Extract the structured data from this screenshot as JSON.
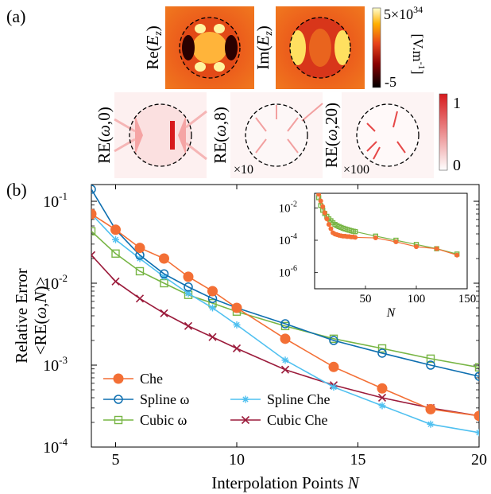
{
  "panel_a": {
    "label": "(a)",
    "field_maps": [
      {
        "label_prefix": "Re(",
        "label_var": "E",
        "label_sub": "z",
        "label_suffix": ")"
      },
      {
        "label_prefix": "Im(",
        "label_var": "E",
        "label_sub": "z",
        "label_suffix": ")"
      }
    ],
    "field_colorbar": {
      "max_label_base": "5×10",
      "max_label_exp": "34",
      "min_label": "-5",
      "unit_base": "[V.m",
      "unit_exp": "-1",
      "unit_close": "]"
    },
    "error_maps": [
      {
        "label_prefix": "RE(",
        "label_var": "ω",
        "label_suffix": ",0)",
        "scale": ""
      },
      {
        "label_prefix": "RE(",
        "label_var": "ω",
        "label_suffix": ",8)",
        "scale": "×10"
      },
      {
        "label_prefix": "RE(",
        "label_var": "ω",
        "label_suffix": ",20)",
        "scale": "×100"
      }
    ],
    "error_colorbar": {
      "max_label": "1",
      "min_label": "0"
    },
    "colors": {
      "field_low": "#000000",
      "field_mid": "#e8421a",
      "field_high": "#ffffd0",
      "error_low": "#ffffff",
      "error_high": "#d7191c"
    }
  },
  "panel_b": {
    "label": "(b)",
    "xlabel_text": "Interpolation Points ",
    "xlabel_var": "N",
    "ylabel_line1": "Relative Error",
    "ylabel_line2_prefix": "<RE(",
    "ylabel_line2_var1": "ω",
    "ylabel_line2_mid": ",",
    "ylabel_line2_var2": "N",
    "ylabel_line2_suffix": ")>",
    "x_ticks": [
      "5",
      "10",
      "15",
      "20"
    ],
    "y_tick_base": "10",
    "y_tick_exps": [
      "-1",
      "-2",
      "-3",
      "-4"
    ],
    "inset": {
      "xlabel": "N",
      "x_ticks": [
        "50",
        "100",
        "150"
      ],
      "y_tick_base": "10",
      "y_tick_exps": [
        "-2",
        "-4",
        "-6"
      ]
    }
  },
  "chart_data": {
    "type": "line",
    "xlabel": "Interpolation Points N",
    "ylabel": "Relative Error <RE(ω,N)>",
    "xlim": [
      4,
      20
    ],
    "ylim": [
      0.0001,
      0.16
    ],
    "yscale": "log",
    "grid": false,
    "legend_position": "bottom-left",
    "series": [
      {
        "name": "Che",
        "color": "#f36f35",
        "marker": "filled-circle",
        "x": [
          4,
          5,
          6,
          7,
          8,
          9,
          10,
          12,
          14,
          16,
          18,
          20
        ],
        "y": [
          0.07,
          0.045,
          0.027,
          0.02,
          0.012,
          0.008,
          0.005,
          0.0021,
          0.00095,
          0.00052,
          0.00029,
          0.00024
        ]
      },
      {
        "name": "Spline ω",
        "color": "#0e6fb0",
        "marker": "open-circle",
        "x": [
          4,
          5,
          6,
          7,
          8,
          9,
          10,
          12,
          14,
          16,
          18,
          20
        ],
        "y": [
          0.14,
          0.045,
          0.022,
          0.013,
          0.009,
          0.0065,
          0.005,
          0.0032,
          0.002,
          0.0014,
          0.001,
          0.00073
        ]
      },
      {
        "name": "Cubic ω",
        "color": "#77b544",
        "marker": "open-square",
        "x": [
          4,
          5,
          6,
          7,
          8,
          9,
          10,
          12,
          14,
          16,
          18,
          20
        ],
        "y": [
          0.043,
          0.023,
          0.014,
          0.01,
          0.0072,
          0.0057,
          0.0045,
          0.003,
          0.0021,
          0.0016,
          0.0012,
          0.00094
        ]
      },
      {
        "name": "Spline Che",
        "color": "#4fc0f0",
        "marker": "asterisk",
        "x": [
          4,
          5,
          6,
          7,
          8,
          9,
          10,
          12,
          14,
          16,
          18,
          20
        ],
        "y": [
          0.07,
          0.034,
          0.02,
          0.012,
          0.0075,
          0.005,
          0.0031,
          0.00115,
          0.00054,
          0.00032,
          0.00019,
          0.00015
        ]
      },
      {
        "name": "Cubic Che",
        "color": "#9b1b3b",
        "marker": "x",
        "x": [
          4,
          5,
          6,
          7,
          8,
          9,
          10,
          12,
          14,
          16,
          18,
          20
        ],
        "y": [
          0.022,
          0.0105,
          0.0065,
          0.0043,
          0.003,
          0.0022,
          0.0016,
          0.00088,
          0.00057,
          0.0004,
          0.0003,
          0.00024
        ]
      }
    ],
    "inset": {
      "type": "line",
      "xlabel": "N",
      "xlim": [
        0,
        150
      ],
      "ylim": [
        1e-07,
        0.08
      ],
      "yscale": "log",
      "series": [
        {
          "name": "Cubic ω",
          "color": "#77b544",
          "marker": "open-square",
          "x": [
            4,
            6,
            8,
            10,
            12,
            14,
            16,
            18,
            20,
            22,
            24,
            26,
            28,
            30,
            32,
            34,
            36,
            38,
            40,
            60,
            80,
            100,
            120,
            140
          ],
          "y": [
            0.043,
            0.014,
            0.0072,
            0.0045,
            0.003,
            0.0021,
            0.0016,
            0.0012,
            0.00094,
            0.0008,
            0.0007,
            0.00062,
            0.00055,
            0.0005,
            0.00046,
            0.00042,
            0.00039,
            0.00036,
            0.00034,
            0.00018,
            0.0001,
            5.5e-05,
            3e-05,
            1.4e-05
          ]
        },
        {
          "name": "Che",
          "color": "#f36f35",
          "marker": "filled-circle",
          "x": [
            4,
            6,
            8,
            10,
            12,
            14,
            16,
            18,
            20,
            22,
            24,
            26,
            28,
            30,
            32,
            34,
            36,
            38,
            40,
            60,
            80,
            100,
            120,
            140
          ],
          "y": [
            0.07,
            0.027,
            0.012,
            0.005,
            0.0021,
            0.00095,
            0.00052,
            0.00029,
            0.00024,
            0.00022,
            0.0002,
            0.00019,
            0.00018,
            0.00018,
            0.00017,
            0.00017,
            0.00016,
            0.00016,
            0.00015,
            0.00014,
            8e-05,
            4e-05,
            3e-05,
            1.2e-05
          ]
        }
      ]
    }
  }
}
